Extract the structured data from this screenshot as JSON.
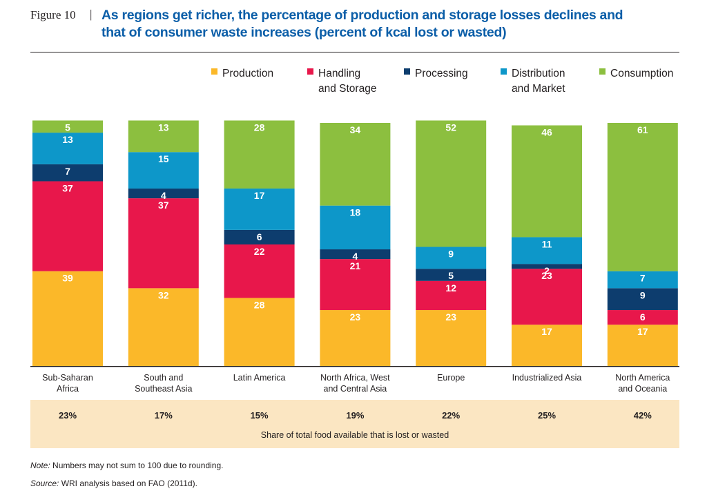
{
  "figure": {
    "label": "Figure 10",
    "separator": "|",
    "title_line1": "As regions get richer, the percentage of production and storage losses declines and",
    "title_line2": "that of consumer waste increases (percent of kcal lost or wasted)"
  },
  "colors": {
    "Production": "#fbb829",
    "Handling and Storage": "#e8174b",
    "Processing": "#0d3d6e",
    "Distribution and Market": "#0d97c9",
    "Consumption": "#8cbf3f",
    "share_band": "#fbe6c2"
  },
  "chart_data": {
    "type": "bar",
    "stacked": true,
    "title": "As regions get richer, the percentage of production and storage losses declines and that of consumer waste increases (percent of kcal lost or wasted)",
    "xlabel": "",
    "ylabel": "",
    "ylim": [
      0,
      100
    ],
    "legend_position": "top",
    "categories": [
      [
        "Sub-Saharan",
        "Africa"
      ],
      [
        "South and",
        "Southeast Asia"
      ],
      [
        "Latin America"
      ],
      [
        "North Africa, West",
        "and Central Asia"
      ],
      [
        "Europe"
      ],
      [
        "Industrialized Asia"
      ],
      [
        "North America",
        "and Oceania"
      ]
    ],
    "series": [
      {
        "name": "Production",
        "legend_lines": [
          "Production"
        ],
        "values": [
          39,
          32,
          28,
          23,
          23,
          17,
          17
        ]
      },
      {
        "name": "Handling and Storage",
        "legend_lines": [
          "Handling",
          "and Storage"
        ],
        "values": [
          37,
          37,
          22,
          21,
          12,
          23,
          6
        ]
      },
      {
        "name": "Processing",
        "legend_lines": [
          "Processing"
        ],
        "values": [
          7,
          4,
          6,
          4,
          5,
          2,
          9
        ]
      },
      {
        "name": "Distribution and Market",
        "legend_lines": [
          "Distribution",
          "and Market"
        ],
        "values": [
          13,
          15,
          17,
          18,
          9,
          11,
          7
        ]
      },
      {
        "name": "Consumption",
        "legend_lines": [
          "Consumption"
        ],
        "values": [
          5,
          13,
          28,
          34,
          52,
          46,
          61
        ]
      }
    ],
    "share_lost_or_wasted": [
      "23%",
      "17%",
      "15%",
      "19%",
      "22%",
      "25%",
      "42%"
    ],
    "share_caption": "Share of total food available that is lost or wasted"
  },
  "footer": {
    "note_label": "Note:",
    "note_text": " Numbers may not sum to 100 due to rounding.",
    "source_label": "Source:",
    "source_text": " WRI analysis based on FAO (2011d)."
  }
}
